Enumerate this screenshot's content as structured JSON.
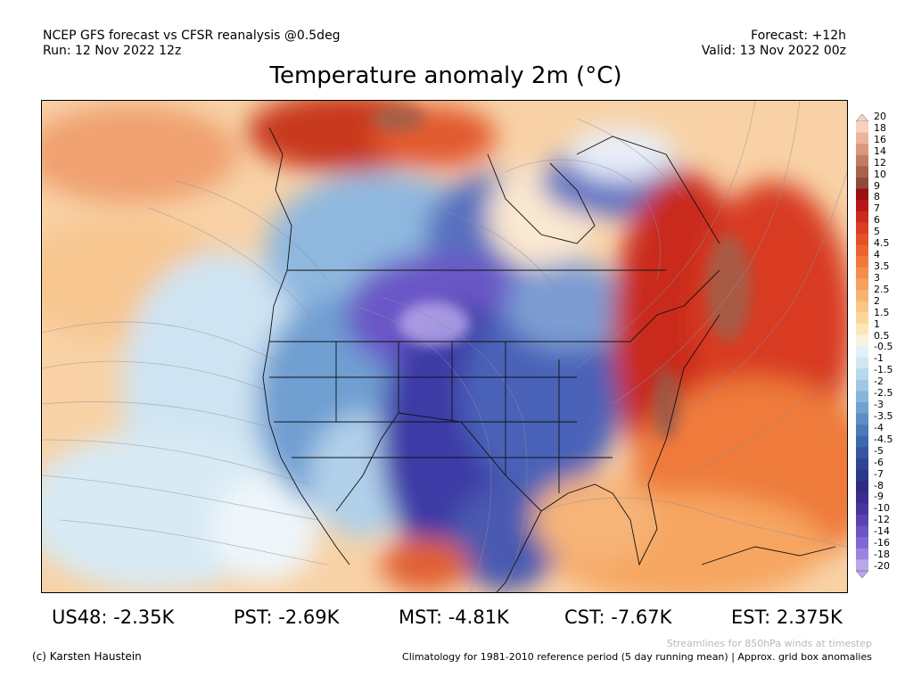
{
  "header": {
    "left_line1": "NCEP GFS forecast vs CFSR reanalysis @0.5deg",
    "left_line2": "Run: 12 Nov 2022 12z",
    "right_line1": "Forecast: +12h",
    "right_line2": "Valid: 13 Nov 2022 00z"
  },
  "title": "Temperature anomaly 2m (°C)",
  "colorbar": {
    "labels": [
      "20",
      "18",
      "16",
      "14",
      "12",
      "10",
      "9",
      "8",
      "7",
      "6",
      "5",
      "4.5",
      "4",
      "3.5",
      "3",
      "2.5",
      "2",
      "1.5",
      "1",
      "0.5",
      "-0.5",
      "-1",
      "-1.5",
      "-2",
      "-2.5",
      "-3",
      "-3.5",
      "-4",
      "-4.5",
      "-5",
      "-6",
      "-7",
      "-8",
      "-9",
      "-10",
      "-12",
      "-14",
      "-16",
      "-18",
      "-20"
    ],
    "colors": [
      "#f6d2bf",
      "#ecb59a",
      "#d99a7c",
      "#c27c62",
      "#a8614d",
      "#8f4a3c",
      "#9a1010",
      "#b81616",
      "#cc2a1c",
      "#dc3c24",
      "#e45028",
      "#ea6430",
      "#ef7a3c",
      "#f28e4c",
      "#f5a25e",
      "#f7b470",
      "#f9c684",
      "#fbd69a",
      "#fde6b8",
      "#fbf2dc",
      "#e4f0f8",
      "#d0e6f4",
      "#b8d8ee",
      "#a0c8e6",
      "#86b6dc",
      "#6ea2d0",
      "#5a8ec4",
      "#4a7ab8",
      "#3e68ac",
      "#3656a0",
      "#2e4694",
      "#2c3888",
      "#2e2c80",
      "#3c2c8e",
      "#4a34a0",
      "#5a42b2",
      "#6c54c4",
      "#8068d2",
      "#9a84de",
      "#b8a8ea"
    ]
  },
  "stats": [
    {
      "label": "US48: -2.35K"
    },
    {
      "label": "PST: -2.69K"
    },
    {
      "label": "MST: -4.81K"
    },
    {
      "label": "CST: -7.67K"
    },
    {
      "label": "EST: 2.375K"
    }
  ],
  "footer": {
    "credit": "(c) Karsten Haustein",
    "streamlines": "Streamlines for 850hPa winds at timestep",
    "climatology": "Climatology for 1981-2010 reference period (5 day running mean) | Approx. grid box anomalies"
  }
}
